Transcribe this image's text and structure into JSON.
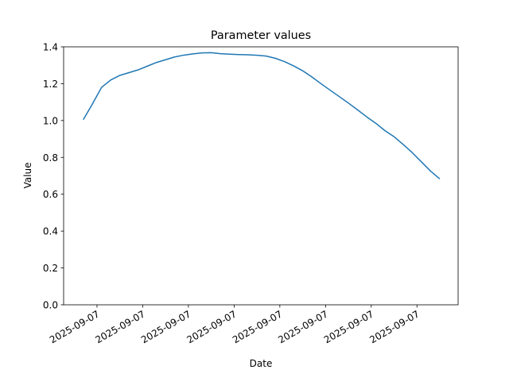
{
  "chart_data": {
    "type": "line",
    "title": "Parameter values",
    "x_label": "Date",
    "y_label": "Value",
    "x": [
      2,
      4,
      6,
      8,
      10,
      12,
      14,
      16,
      18,
      20,
      22,
      24,
      26,
      28,
      30,
      32,
      34,
      36,
      38,
      40,
      42,
      44,
      46,
      48,
      50,
      52,
      54,
      56,
      58,
      60,
      62,
      64,
      66,
      68,
      70,
      72,
      74,
      76,
      78,
      80
    ],
    "series": [
      {
        "name": "Value",
        "color": "#1f77b4",
        "values": [
          1.005,
          1.09,
          1.18,
          1.22,
          1.245,
          1.26,
          1.275,
          1.295,
          1.315,
          1.33,
          1.345,
          1.355,
          1.362,
          1.367,
          1.368,
          1.363,
          1.36,
          1.358,
          1.357,
          1.354,
          1.35,
          1.338,
          1.32,
          1.297,
          1.27,
          1.237,
          1.2,
          1.165,
          1.13,
          1.095,
          1.058,
          1.02,
          0.985,
          0.945,
          0.912,
          0.87,
          0.825,
          0.775,
          0.725,
          0.683
        ]
      }
    ],
    "xlim": [
      -2.3,
      84
    ],
    "xticks": [
      {
        "value": 5,
        "label": "2025-09-07"
      },
      {
        "value": 15,
        "label": "2025-09-07"
      },
      {
        "value": 25,
        "label": "2025-09-07"
      },
      {
        "value": 35,
        "label": "2025-09-07"
      },
      {
        "value": 45,
        "label": "2025-09-07"
      },
      {
        "value": 55,
        "label": "2025-09-07"
      },
      {
        "value": 65,
        "label": "2025-09-07"
      },
      {
        "value": 75,
        "label": "2025-09-07"
      }
    ],
    "ylim": [
      0,
      1.4
    ],
    "yticks": [
      {
        "value": 0,
        "label": "0.0"
      },
      {
        "value": 0.2,
        "label": "0.2"
      },
      {
        "value": 0.4,
        "label": "0.4"
      },
      {
        "value": 0.6,
        "label": "0.6"
      },
      {
        "value": 0.8,
        "label": "0.8"
      },
      {
        "value": 1.0,
        "label": "1.0"
      },
      {
        "value": 1.2,
        "label": "1.2"
      },
      {
        "value": 1.4,
        "label": "1.4"
      }
    ],
    "grid": false
  }
}
